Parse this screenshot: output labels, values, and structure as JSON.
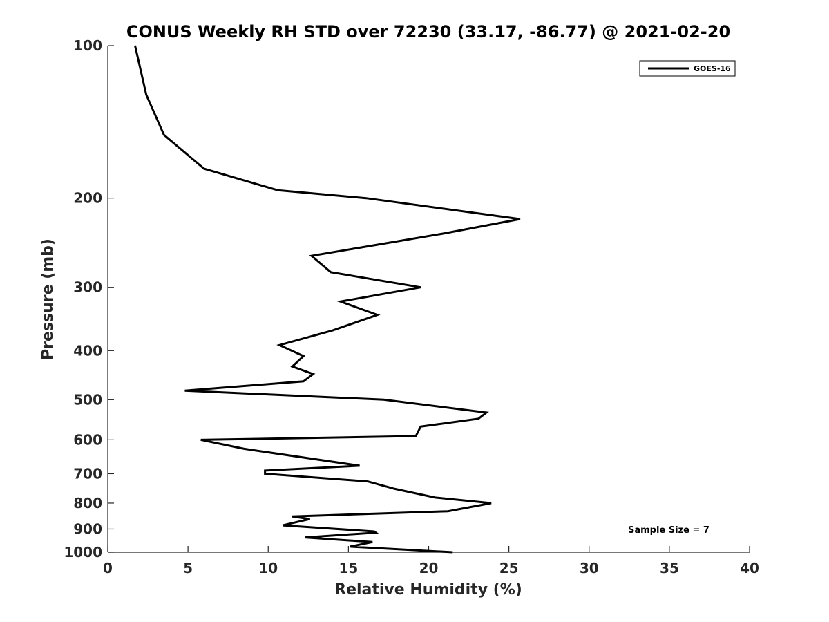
{
  "chart_data": {
    "type": "line",
    "title": "CONUS Weekly RH STD over 72230 (33.17, -86.77) @ 2021-02-20",
    "xlabel": "Relative Humidity (%)",
    "ylabel": "Pressure (mb)",
    "xlim": [
      0,
      40
    ],
    "ylim": [
      100,
      1000
    ],
    "yscale": "log",
    "yreversed": true,
    "x_ticks": [
      0,
      5,
      10,
      15,
      20,
      25,
      30,
      35,
      40
    ],
    "y_ticks": [
      100,
      200,
      300,
      400,
      500,
      600,
      700,
      800,
      900,
      1000
    ],
    "grid": false,
    "legend_position": "top-right",
    "line_color": "#000000",
    "series": [
      {
        "name": "GOES-16",
        "rh": [
          1.7,
          2.4,
          3.5,
          6.0,
          10.6,
          16.1,
          25.7,
          20.9,
          12.7,
          13.9,
          19.5,
          14.5,
          16.8,
          14.0,
          10.7,
          12.2,
          11.5,
          12.8,
          12.2,
          4.8,
          17.2,
          23.6,
          23.1,
          19.5,
          19.2,
          5.8,
          8.5,
          15.7,
          9.8,
          9.8,
          16.2,
          17.9,
          20.4,
          23.9,
          21.2,
          11.5,
          12.6,
          10.9,
          16.6,
          16.7,
          12.3,
          16.5,
          15.1,
          21.5
        ],
        "pressure": [
          100,
          125,
          150,
          175,
          193,
          200,
          220,
          235,
          260,
          280,
          300,
          320,
          340,
          365,
          390,
          410,
          430,
          445,
          460,
          480,
          500,
          530,
          545,
          565,
          590,
          600,
          625,
          675,
          690,
          700,
          725,
          750,
          780,
          800,
          830,
          850,
          860,
          885,
          910,
          915,
          935,
          955,
          975,
          1000
        ]
      }
    ],
    "annotation": "Sample Size = 7"
  }
}
